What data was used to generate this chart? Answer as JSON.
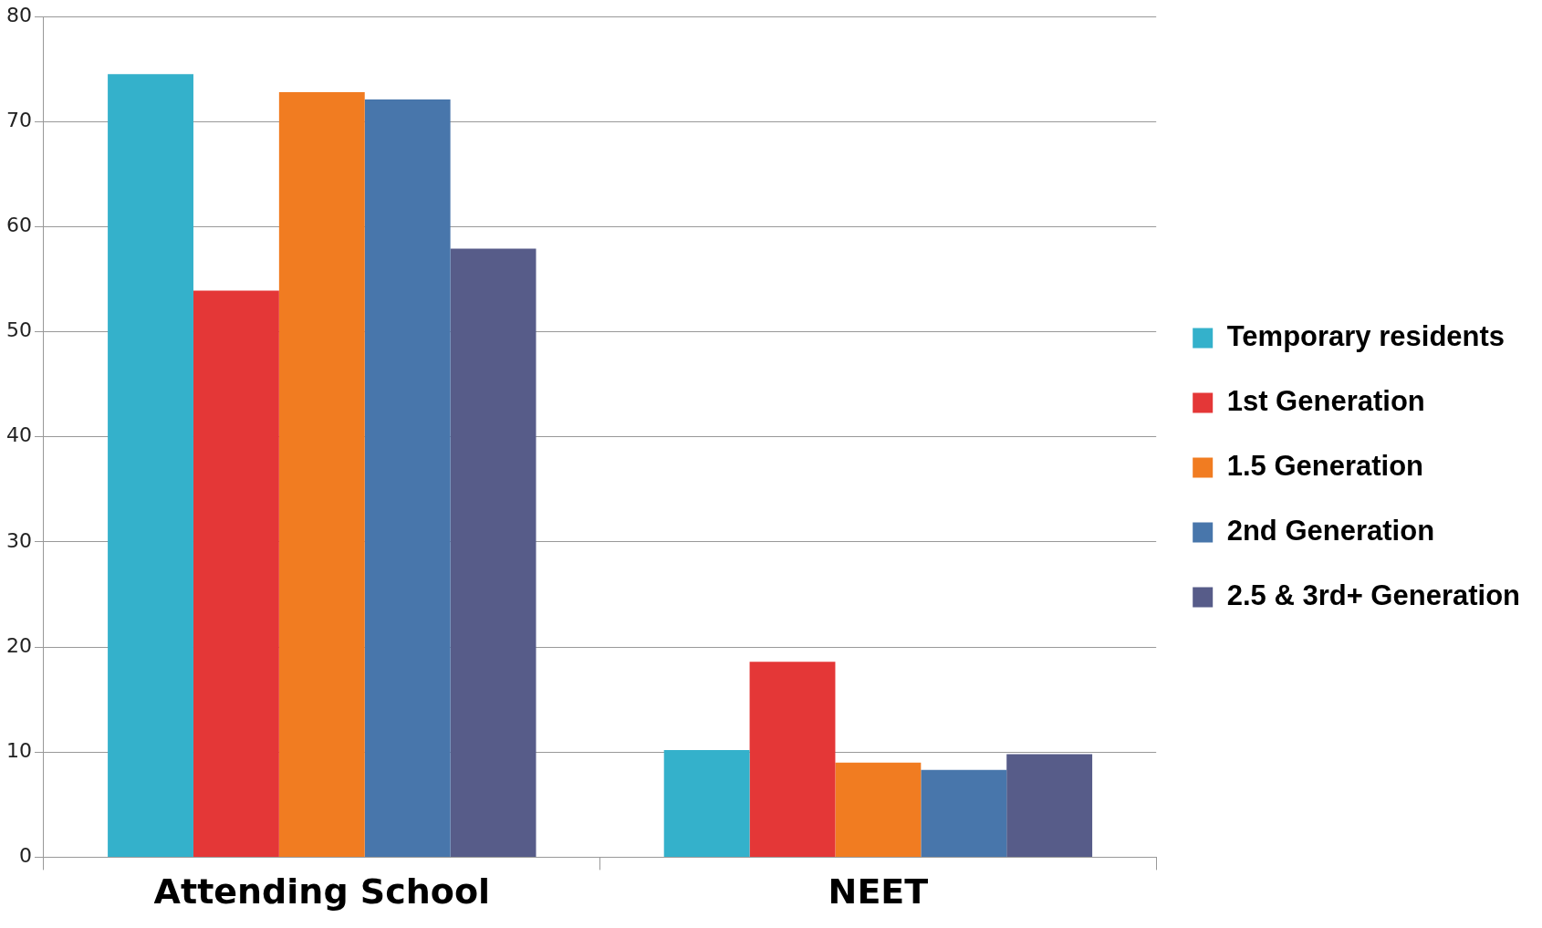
{
  "chart_data": {
    "type": "bar",
    "categories": [
      "Attending School",
      "NEET"
    ],
    "series": [
      {
        "name": "Temporary residents",
        "color": "#34b1cb",
        "values": [
          74.5,
          10.2
        ]
      },
      {
        "name": "1st Generation",
        "color": "#e43737",
        "values": [
          53.9,
          18.6
        ]
      },
      {
        "name": "1.5 Generation",
        "color": "#f17c21",
        "values": [
          72.8,
          9.0
        ]
      },
      {
        "name": "2nd Generation",
        "color": "#4876ab",
        "values": [
          72.1,
          8.3
        ]
      },
      {
        "name": "2.5 & 3rd+ Generation",
        "color": "#575c89",
        "values": [
          57.9,
          9.8
        ]
      }
    ],
    "ylim": [
      0,
      80
    ],
    "yticks": [
      0,
      10,
      20,
      30,
      40,
      50,
      60,
      70,
      80
    ],
    "grid": "y",
    "legend": "right"
  }
}
